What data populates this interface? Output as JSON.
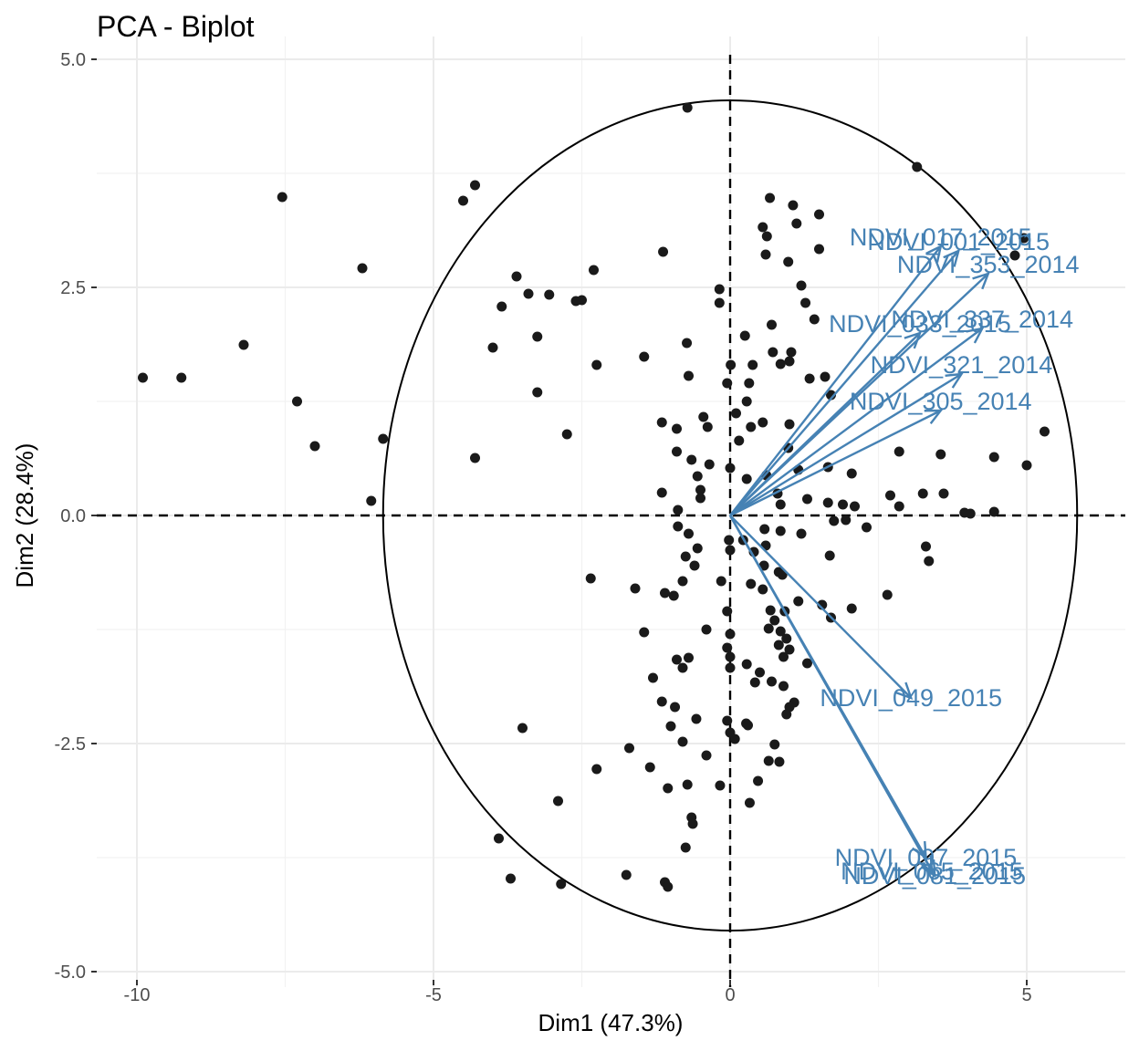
{
  "chart_data": {
    "type": "scatter",
    "title": "PCA - Biplot",
    "xlabel": "Dim1 (47.3%)",
    "ylabel": "Dim2 (28.4%)",
    "xlim": [
      -10.5,
      6.6
    ],
    "ylim": [
      -5.0,
      5.0
    ],
    "x_ticks": [
      -10,
      -5,
      0,
      5
    ],
    "y_ticks": [
      -5.0,
      -2.5,
      0.0,
      2.5,
      5.0
    ],
    "x_tick_labels": [
      "-10",
      "-5",
      "0",
      "5"
    ],
    "y_tick_labels": [
      "-5.0",
      "-2.5",
      "0.0",
      "2.5",
      "5.0"
    ],
    "grid": true,
    "reference_lines": {
      "x": 0,
      "y": 0,
      "style": "dashed"
    },
    "circle": {
      "cx": 0,
      "cy": 0,
      "rx": 5.85,
      "ry": 4.55
    },
    "colors": {
      "points": "#1a1a1a",
      "variables": "#4682B4",
      "circle": "#000000"
    },
    "variables": [
      {
        "label": "NDVI_017_2015",
        "x": 3.55,
        "y": 2.95
      },
      {
        "label": "NDVI_001_2015",
        "x": 3.85,
        "y": 2.9
      },
      {
        "label": "NDVI_353_2014",
        "x": 4.35,
        "y": 2.65
      },
      {
        "label": "NDVI_337_2014",
        "x": 4.25,
        "y": 2.05
      },
      {
        "label": "NDVI_033_2015",
        "x": 3.2,
        "y": 2.0
      },
      {
        "label": "NDVI_321_2014",
        "x": 3.9,
        "y": 1.55
      },
      {
        "label": "NDVI_305_2014",
        "x": 3.55,
        "y": 1.15
      },
      {
        "label": "NDVI_049_2015",
        "x": 3.05,
        "y": -2.0
      },
      {
        "label": "NDVI_097_2015",
        "x": 3.3,
        "y": -3.75
      },
      {
        "label": "NDVI_065_2015",
        "x": 3.4,
        "y": -3.9
      },
      {
        "label": "NDVI_081_2015",
        "x": 3.45,
        "y": -3.95
      }
    ],
    "points": [
      [
        -0.72,
        4.47
      ],
      [
        3.15,
        3.82
      ],
      [
        -7.55,
        3.49
      ],
      [
        -4.5,
        3.45
      ],
      [
        -4.3,
        3.62
      ],
      [
        0.67,
        3.48
      ],
      [
        1.06,
        3.4
      ],
      [
        1.5,
        3.3
      ],
      [
        0.55,
        3.16
      ],
      [
        1.12,
        3.2
      ],
      [
        0.62,
        3.06
      ],
      [
        -1.13,
        2.89
      ],
      [
        1.5,
        2.92
      ],
      [
        0.6,
        2.86
      ],
      [
        4.95,
        3.04
      ],
      [
        4.8,
        2.85
      ],
      [
        -6.2,
        2.71
      ],
      [
        -2.3,
        2.69
      ],
      [
        -3.6,
        2.62
      ],
      [
        -3.05,
        2.42
      ],
      [
        -3.4,
        2.43
      ],
      [
        -3.85,
        2.29
      ],
      [
        -2.6,
        2.35
      ],
      [
        -2.5,
        2.36
      ],
      [
        -0.18,
        2.48
      ],
      [
        -0.18,
        2.33
      ],
      [
        1.2,
        2.52
      ],
      [
        1.27,
        2.33
      ],
      [
        0.98,
        2.78
      ],
      [
        1.42,
        2.15
      ],
      [
        0.7,
        2.09
      ],
      [
        -3.25,
        1.96
      ],
      [
        -8.2,
        1.87
      ],
      [
        -4.0,
        1.84
      ],
      [
        -0.73,
        1.89
      ],
      [
        0.25,
        1.97
      ],
      [
        0.72,
        1.79
      ],
      [
        1.03,
        1.79
      ],
      [
        -1.45,
        1.74
      ],
      [
        0.85,
        1.66
      ],
      [
        -0.7,
        1.53
      ],
      [
        1.0,
        1.69
      ],
      [
        -2.25,
        1.65
      ],
      [
        0.01,
        1.65
      ],
      [
        0.38,
        1.65
      ],
      [
        1.34,
        1.5
      ],
      [
        1.6,
        1.52
      ],
      [
        -9.9,
        1.51
      ],
      [
        -9.25,
        1.51
      ],
      [
        -0.05,
        1.45
      ],
      [
        0.32,
        1.45
      ],
      [
        1.7,
        1.32
      ],
      [
        -3.25,
        1.35
      ],
      [
        -7.3,
        1.25
      ],
      [
        0.28,
        1.25
      ],
      [
        -0.45,
        1.08
      ],
      [
        0.1,
        1.12
      ],
      [
        0.55,
        1.02
      ],
      [
        1.0,
        1.0
      ],
      [
        -1.15,
        1.02
      ],
      [
        -0.9,
        0.95
      ],
      [
        -0.38,
        0.97
      ],
      [
        0.35,
        0.97
      ],
      [
        0.98,
        0.74
      ],
      [
        -2.75,
        0.89
      ],
      [
        -5.85,
        0.84
      ],
      [
        -7.0,
        0.76
      ],
      [
        -0.9,
        0.7
      ],
      [
        -0.65,
        0.61
      ],
      [
        0.15,
        0.82
      ],
      [
        -4.3,
        0.63
      ],
      [
        -0.35,
        0.56
      ],
      [
        0.0,
        0.52
      ],
      [
        0.28,
        0.4
      ],
      [
        0.61,
        0.44
      ],
      [
        1.15,
        0.5
      ],
      [
        1.65,
        0.53
      ],
      [
        2.05,
        0.46
      ],
      [
        2.85,
        0.7
      ],
      [
        3.55,
        0.67
      ],
      [
        4.45,
        0.64
      ],
      [
        5.0,
        0.55
      ],
      [
        5.3,
        0.92
      ],
      [
        -0.55,
        0.43
      ],
      [
        -1.15,
        0.25
      ],
      [
        -0.5,
        0.19
      ],
      [
        -0.5,
        0.28
      ],
      [
        -0.88,
        0.06
      ],
      [
        -6.05,
        0.16
      ],
      [
        0.8,
        0.24
      ],
      [
        0.85,
        0.12
      ],
      [
        1.3,
        0.18
      ],
      [
        1.65,
        0.14
      ],
      [
        1.9,
        0.12
      ],
      [
        2.1,
        0.1
      ],
      [
        2.7,
        0.22
      ],
      [
        2.85,
        0.1
      ],
      [
        3.25,
        0.24
      ],
      [
        3.6,
        0.24
      ],
      [
        3.95,
        0.03
      ],
      [
        4.05,
        0.02
      ],
      [
        4.45,
        0.04
      ],
      [
        -0.88,
        -0.12
      ],
      [
        -0.7,
        -0.2
      ],
      [
        1.75,
        -0.06
      ],
      [
        1.95,
        -0.05
      ],
      [
        2.3,
        -0.13
      ],
      [
        0.58,
        -0.15
      ],
      [
        0.85,
        -0.17
      ],
      [
        1.2,
        -0.2
      ],
      [
        -0.55,
        -0.36
      ],
      [
        -0.02,
        -0.27
      ],
      [
        0.22,
        -0.27
      ],
      [
        0.6,
        -0.33
      ],
      [
        1.68,
        -0.44
      ],
      [
        3.3,
        -0.34
      ],
      [
        3.35,
        -0.5
      ],
      [
        0.0,
        -0.38
      ],
      [
        0.4,
        -0.4
      ],
      [
        0.57,
        -0.55
      ],
      [
        0.82,
        -0.62
      ],
      [
        -0.75,
        -0.45
      ],
      [
        -0.6,
        -0.55
      ],
      [
        -2.35,
        -0.69
      ],
      [
        0.88,
        -0.65
      ],
      [
        -1.6,
        -0.8
      ],
      [
        -1.1,
        -0.85
      ],
      [
        -0.95,
        -0.88
      ],
      [
        -0.8,
        -0.72
      ],
      [
        -0.15,
        -0.72
      ],
      [
        0.35,
        -0.75
      ],
      [
        0.55,
        -0.81
      ],
      [
        1.15,
        -0.94
      ],
      [
        1.55,
        -0.98
      ],
      [
        2.05,
        -1.02
      ],
      [
        2.65,
        -0.87
      ],
      [
        -0.05,
        -1.05
      ],
      [
        0.0,
        -1.3
      ],
      [
        0.68,
        -1.04
      ],
      [
        0.75,
        -1.15
      ],
      [
        0.92,
        -1.05
      ],
      [
        1.7,
        -1.12
      ],
      [
        -1.45,
        -1.28
      ],
      [
        -0.4,
        -1.25
      ],
      [
        0.65,
        -1.24
      ],
      [
        0.85,
        -1.27
      ],
      [
        0.95,
        -1.35
      ],
      [
        -0.05,
        -1.45
      ],
      [
        0.82,
        -1.42
      ],
      [
        0.9,
        -1.55
      ],
      [
        1.0,
        -1.47
      ],
      [
        1.3,
        -1.62
      ],
      [
        -0.9,
        -1.58
      ],
      [
        -0.7,
        -1.56
      ],
      [
        -0.8,
        -1.67
      ],
      [
        0.0,
        -1.55
      ],
      [
        0.0,
        -1.67
      ],
      [
        0.28,
        -1.63
      ],
      [
        0.5,
        -1.72
      ],
      [
        0.42,
        -1.83
      ],
      [
        0.7,
        -1.82
      ],
      [
        0.9,
        -1.87
      ],
      [
        -1.3,
        -1.78
      ],
      [
        -1.15,
        -2.04
      ],
      [
        -0.93,
        -2.1
      ],
      [
        1.08,
        -2.05
      ],
      [
        1.0,
        -2.1
      ],
      [
        0.95,
        -2.18
      ],
      [
        -0.57,
        -2.23
      ],
      [
        -0.05,
        -2.25
      ],
      [
        0.0,
        -2.38
      ],
      [
        0.27,
        -2.28
      ],
      [
        0.08,
        -2.45
      ],
      [
        0.3,
        -2.3
      ],
      [
        -1.0,
        -2.31
      ],
      [
        -3.5,
        -2.33
      ],
      [
        -0.8,
        -2.48
      ],
      [
        0.75,
        -2.51
      ],
      [
        -1.7,
        -2.55
      ],
      [
        -0.4,
        -2.63
      ],
      [
        0.65,
        -2.69
      ],
      [
        0.83,
        -2.7
      ],
      [
        -2.25,
        -2.78
      ],
      [
        -1.35,
        -2.76
      ],
      [
        -1.05,
        -2.99
      ],
      [
        -0.72,
        -2.95
      ],
      [
        -0.17,
        -2.96
      ],
      [
        0.47,
        -2.91
      ],
      [
        0.33,
        -3.15
      ],
      [
        -2.9,
        -3.13
      ],
      [
        -0.65,
        -3.31
      ],
      [
        -0.63,
        -3.38
      ],
      [
        -3.9,
        -3.54
      ],
      [
        -0.75,
        -3.64
      ],
      [
        -3.7,
        -3.98
      ],
      [
        -2.85,
        -4.04
      ],
      [
        -1.75,
        -3.94
      ],
      [
        -1.1,
        -4.02
      ],
      [
        -1.05,
        -4.07
      ]
    ]
  }
}
